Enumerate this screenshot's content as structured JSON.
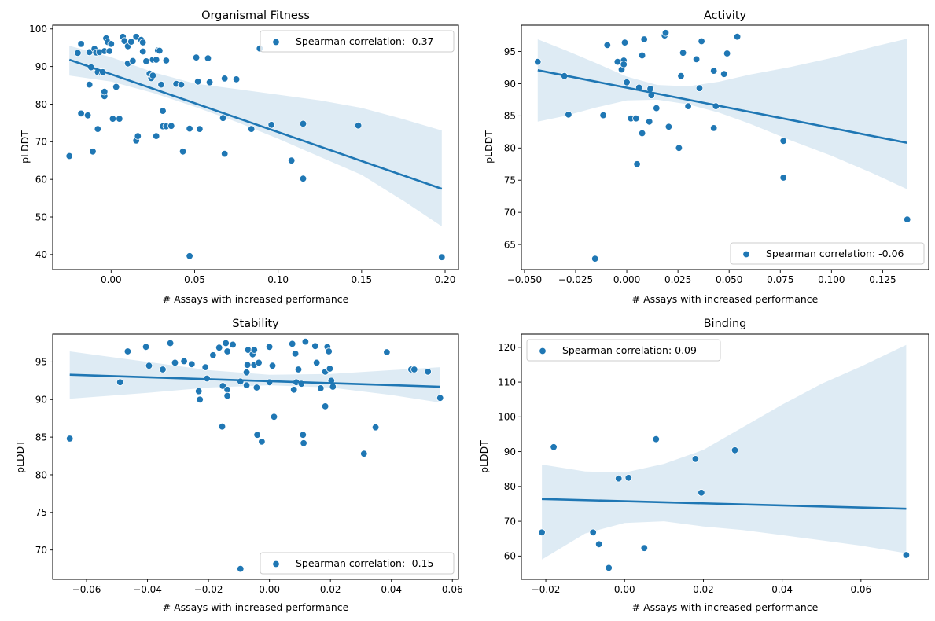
{
  "figure": {
    "point_color": "#1f77b4",
    "band_color": "#1f77b4"
  },
  "chart_data": [
    {
      "type": "scatter",
      "title": "Organismal Fitness",
      "xlabel": "# Assays with increased performance",
      "ylabel": "pLDDT",
      "xlim": [
        -0.035,
        0.208
      ],
      "ylim": [
        36,
        101
      ],
      "xticks": [
        0.0,
        0.05,
        0.1,
        0.15,
        0.2
      ],
      "xtick_labels": [
        "0.00",
        "0.05",
        "0.10",
        "0.15",
        "0.20"
      ],
      "yticks": [
        40,
        50,
        60,
        70,
        80,
        90,
        100
      ],
      "ytick_labels": [
        "40",
        "50",
        "60",
        "70",
        "80",
        "90",
        "100"
      ],
      "legend": {
        "label": "Spearman correlation: -0.37",
        "placement": "upper right"
      },
      "regression": {
        "x": [
          -0.025,
          0.198
        ],
        "y": [
          91.8,
          57.5
        ]
      },
      "ci_band": {
        "x": [
          -0.025,
          0.0,
          0.025,
          0.05,
          0.075,
          0.1,
          0.125,
          0.15,
          0.175,
          0.198
        ],
        "lower": [
          87.6,
          86.0,
          83.0,
          79.3,
          75.3,
          70.8,
          66.0,
          61.2,
          54.3,
          47.5
        ],
        "upper": [
          95.5,
          92.5,
          88.5,
          85.5,
          84.0,
          82.5,
          81.0,
          79.0,
          76.0,
          73.0
        ]
      },
      "points": [
        [
          -0.025,
          66.2
        ],
        [
          -0.02,
          93.6
        ],
        [
          -0.018,
          96.0
        ],
        [
          -0.018,
          77.5
        ],
        [
          -0.014,
          77.0
        ],
        [
          -0.013,
          93.8
        ],
        [
          -0.013,
          85.2
        ],
        [
          -0.012,
          89.8
        ],
        [
          -0.011,
          67.4
        ],
        [
          -0.01,
          94.7
        ],
        [
          -0.009,
          93.7
        ],
        [
          -0.008,
          88.5
        ],
        [
          -0.008,
          73.4
        ],
        [
          -0.007,
          93.8
        ],
        [
          -0.006,
          88.5
        ],
        [
          -0.005,
          88.5
        ],
        [
          -0.004,
          94.1
        ],
        [
          -0.004,
          82.1
        ],
        [
          -0.004,
          83.3
        ],
        [
          -0.003,
          97.5
        ],
        [
          -0.002,
          96.5
        ],
        [
          -0.001,
          94.1
        ],
        [
          0.0,
          96.0
        ],
        [
          0.001,
          76.1
        ],
        [
          0.003,
          84.6
        ],
        [
          0.005,
          76.1
        ],
        [
          0.007,
          97.9
        ],
        [
          0.008,
          96.8
        ],
        [
          0.01,
          95.4
        ],
        [
          0.01,
          90.8
        ],
        [
          0.012,
          96.6
        ],
        [
          0.013,
          91.5
        ],
        [
          0.015,
          97.9
        ],
        [
          0.015,
          70.3
        ],
        [
          0.016,
          71.5
        ],
        [
          0.018,
          97.1
        ],
        [
          0.019,
          96.4
        ],
        [
          0.019,
          94.0
        ],
        [
          0.021,
          91.4
        ],
        [
          0.023,
          88.1
        ],
        [
          0.024,
          86.9
        ],
        [
          0.025,
          87.6
        ],
        [
          0.025,
          91.8
        ],
        [
          0.027,
          91.8
        ],
        [
          0.027,
          71.5
        ],
        [
          0.028,
          94.3
        ],
        [
          0.029,
          94.2
        ],
        [
          0.03,
          85.2
        ],
        [
          0.031,
          78.2
        ],
        [
          0.031,
          74.1
        ],
        [
          0.033,
          74.1
        ],
        [
          0.033,
          91.6
        ],
        [
          0.036,
          74.2
        ],
        [
          0.039,
          85.4
        ],
        [
          0.042,
          85.2
        ],
        [
          0.043,
          67.4
        ],
        [
          0.047,
          73.5
        ],
        [
          0.047,
          39.6
        ],
        [
          0.051,
          92.4
        ],
        [
          0.052,
          86.0
        ],
        [
          0.053,
          73.4
        ],
        [
          0.058,
          92.2
        ],
        [
          0.059,
          85.8
        ],
        [
          0.067,
          76.3
        ],
        [
          0.068,
          86.8
        ],
        [
          0.068,
          66.8
        ],
        [
          0.075,
          86.6
        ],
        [
          0.084,
          73.4
        ],
        [
          0.089,
          94.8
        ],
        [
          0.096,
          74.5
        ],
        [
          0.108,
          65.0
        ],
        [
          0.115,
          74.8
        ],
        [
          0.115,
          60.2
        ],
        [
          0.148,
          74.3
        ],
        [
          0.198,
          39.3
        ]
      ]
    },
    {
      "type": "scatter",
      "title": "Activity",
      "xlabel": "# Assays with increased performance",
      "ylabel": "pLDDT",
      "xlim": [
        -0.0515,
        0.1475
      ],
      "ylim": [
        61.1,
        99.1
      ],
      "xticks": [
        -0.05,
        -0.025,
        0.0,
        0.025,
        0.05,
        0.075,
        0.1,
        0.125
      ],
      "xtick_labels": [
        "−0.050",
        "−0.025",
        "0.000",
        "0.025",
        "0.050",
        "0.075",
        "0.100",
        "0.125"
      ],
      "yticks": [
        65,
        70,
        75,
        80,
        85,
        90,
        95
      ],
      "ytick_labels": [
        "65",
        "70",
        "75",
        "80",
        "85",
        "90",
        "95"
      ],
      "legend": {
        "label": "Spearman correlation: -0.06",
        "placement": "lower right"
      },
      "regression": {
        "x": [
          -0.0435,
          0.137
        ],
        "y": [
          92.1,
          80.8
        ]
      },
      "ci_band": {
        "x": [
          -0.0435,
          -0.03,
          -0.015,
          0.0,
          0.015,
          0.03,
          0.045,
          0.06,
          0.08,
          0.1,
          0.12,
          0.137
        ],
        "lower": [
          84.1,
          85.0,
          86.3,
          87.4,
          87.5,
          86.8,
          85.5,
          83.8,
          81.2,
          78.8,
          76.1,
          73.6
        ],
        "upper": [
          96.9,
          95.2,
          93.2,
          91.1,
          89.8,
          89.6,
          90.3,
          91.4,
          92.6,
          94.0,
          95.7,
          97.0
        ]
      },
      "points": [
        [
          -0.0435,
          93.4
        ],
        [
          -0.0305,
          91.2
        ],
        [
          -0.0285,
          85.2
        ],
        [
          -0.0115,
          85.1
        ],
        [
          -0.0095,
          96.0
        ],
        [
          -0.0045,
          93.4
        ],
        [
          -0.0025,
          92.2
        ],
        [
          -0.0015,
          93.6
        ],
        [
          -0.0015,
          93.0
        ],
        [
          -0.001,
          96.4
        ],
        [
          0.0,
          90.2
        ],
        [
          0.002,
          84.6
        ],
        [
          0.0045,
          84.6
        ],
        [
          0.005,
          77.5
        ],
        [
          0.006,
          89.4
        ],
        [
          0.0075,
          82.3
        ],
        [
          0.0075,
          94.4
        ],
        [
          0.0085,
          96.9
        ],
        [
          0.011,
          84.1
        ],
        [
          0.0115,
          89.2
        ],
        [
          0.012,
          88.2
        ],
        [
          0.0145,
          86.2
        ],
        [
          0.0185,
          97.5
        ],
        [
          0.019,
          97.9
        ],
        [
          0.0205,
          83.3
        ],
        [
          0.0255,
          80.0
        ],
        [
          0.0265,
          91.2
        ],
        [
          0.0275,
          94.8
        ],
        [
          0.03,
          86.5
        ],
        [
          0.034,
          93.8
        ],
        [
          0.0355,
          89.3
        ],
        [
          0.0365,
          96.6
        ],
        [
          0.0425,
          92.0
        ],
        [
          0.0425,
          83.1
        ],
        [
          0.0435,
          86.5
        ],
        [
          0.0475,
          91.5
        ],
        [
          0.049,
          94.7
        ],
        [
          0.054,
          97.3
        ],
        [
          0.0765,
          81.1
        ],
        [
          0.0765,
          75.4
        ],
        [
          0.137,
          68.9
        ],
        [
          -0.0155,
          62.8
        ]
      ]
    },
    {
      "type": "scatter",
      "title": "Stability",
      "xlabel": "# Assays with increased performance",
      "ylabel": "pLDDT",
      "xlim": [
        -0.0711,
        0.062
      ],
      "ylim": [
        66.1,
        98.7
      ],
      "xticks": [
        -0.06,
        -0.04,
        -0.02,
        0.0,
        0.02,
        0.04,
        0.06
      ],
      "xtick_labels": [
        "−0.06",
        "−0.04",
        "−0.02",
        "0.00",
        "0.02",
        "0.04",
        "0.06"
      ],
      "yticks": [
        70,
        75,
        80,
        85,
        90,
        95
      ],
      "ytick_labels": [
        "70",
        "75",
        "80",
        "85",
        "90",
        "95"
      ],
      "legend": {
        "label": "Spearman correlation: -0.15",
        "placement": "lower right"
      },
      "regression": {
        "x": [
          -0.0655,
          0.056
        ],
        "y": [
          93.3,
          91.7
        ]
      },
      "ci_band": {
        "x": [
          -0.0655,
          -0.04,
          -0.02,
          0.0,
          0.02,
          0.04,
          0.056
        ],
        "lower": [
          90.1,
          90.9,
          91.6,
          91.9,
          91.6,
          90.6,
          89.6
        ],
        "upper": [
          96.4,
          95.0,
          93.9,
          93.3,
          93.4,
          93.9,
          94.3
        ]
      },
      "points": [
        [
          -0.0655,
          84.8
        ],
        [
          -0.049,
          92.3
        ],
        [
          -0.0465,
          96.4
        ],
        [
          -0.0405,
          97.0
        ],
        [
          -0.0395,
          94.5
        ],
        [
          -0.035,
          94.0
        ],
        [
          -0.0325,
          97.5
        ],
        [
          -0.031,
          94.9
        ],
        [
          -0.028,
          95.1
        ],
        [
          -0.0255,
          94.7
        ],
        [
          -0.0232,
          91.1
        ],
        [
          -0.0228,
          90.0
        ],
        [
          -0.021,
          94.3
        ],
        [
          -0.0205,
          92.8
        ],
        [
          -0.0185,
          95.9
        ],
        [
          -0.0165,
          96.9
        ],
        [
          -0.0155,
          86.4
        ],
        [
          -0.0153,
          91.8
        ],
        [
          -0.0143,
          97.5
        ],
        [
          -0.0138,
          96.4
        ],
        [
          -0.0138,
          91.3
        ],
        [
          -0.0138,
          90.5
        ],
        [
          -0.012,
          97.3
        ],
        [
          -0.0095,
          92.4
        ],
        [
          -0.0095,
          67.5
        ],
        [
          -0.0075,
          93.6
        ],
        [
          -0.0075,
          91.9
        ],
        [
          -0.0072,
          94.6
        ],
        [
          -0.007,
          96.6
        ],
        [
          -0.0055,
          96.0
        ],
        [
          -0.005,
          96.6
        ],
        [
          -0.005,
          94.6
        ],
        [
          -0.0042,
          91.6
        ],
        [
          -0.0035,
          94.9
        ],
        [
          -0.004,
          85.3
        ],
        [
          -0.0025,
          84.4
        ],
        [
          0.0,
          92.3
        ],
        [
          0.0,
          97.0
        ],
        [
          0.0015,
          87.7
        ],
        [
          0.001,
          94.5
        ],
        [
          0.0075,
          97.4
        ],
        [
          0.008,
          91.3
        ],
        [
          0.0085,
          96.1
        ],
        [
          0.0088,
          92.3
        ],
        [
          0.0095,
          94.0
        ],
        [
          0.0105,
          92.1
        ],
        [
          0.011,
          85.3
        ],
        [
          0.0112,
          84.2
        ],
        [
          0.0118,
          97.7
        ],
        [
          0.015,
          97.1
        ],
        [
          0.0155,
          94.9
        ],
        [
          0.0168,
          91.5
        ],
        [
          0.0183,
          89.1
        ],
        [
          0.0183,
          93.7
        ],
        [
          0.019,
          97.0
        ],
        [
          0.0195,
          96.4
        ],
        [
          0.0198,
          94.1
        ],
        [
          0.0203,
          92.5
        ],
        [
          0.0208,
          91.7
        ],
        [
          0.031,
          82.8
        ],
        [
          0.0348,
          86.3
        ],
        [
          0.0385,
          96.3
        ],
        [
          0.0465,
          94.0
        ],
        [
          0.0475,
          94.0
        ],
        [
          0.052,
          93.7
        ],
        [
          0.056,
          90.2
        ],
        [
          -0.0655,
          84.8
        ]
      ]
    },
    {
      "type": "scatter",
      "title": "Binding",
      "xlabel": "# Assays with increased performance",
      "ylabel": "pLDDT",
      "xlim": [
        -0.0262,
        0.0772
      ],
      "ylim": [
        53.3,
        123.8
      ],
      "xticks": [
        -0.02,
        0.0,
        0.02,
        0.04,
        0.06
      ],
      "xtick_labels": [
        "−0.02",
        "0.00",
        "0.02",
        "0.04",
        "0.06"
      ],
      "yticks": [
        60,
        70,
        80,
        90,
        100,
        110,
        120
      ],
      "ytick_labels": [
        "60",
        "70",
        "80",
        "90",
        "100",
        "110",
        "120"
      ],
      "legend": {
        "label": "Spearman correlation: 0.09",
        "placement": "upper left"
      },
      "regression": {
        "x": [
          -0.021,
          0.0715
        ],
        "y": [
          76.4,
          73.6
        ]
      },
      "ci_band": {
        "x": [
          -0.021,
          -0.01,
          0.0,
          0.01,
          0.02,
          0.03,
          0.04,
          0.05,
          0.06,
          0.0715
        ],
        "lower": [
          59.0,
          66.5,
          69.5,
          70.0,
          68.5,
          67.5,
          66.0,
          64.5,
          63.0,
          60.8
        ],
        "upper": [
          86.3,
          84.3,
          84.0,
          86.5,
          90.5,
          97.0,
          103.5,
          109.5,
          114.5,
          120.7
        ]
      },
      "points": [
        [
          -0.021,
          66.8
        ],
        [
          -0.018,
          91.3
        ],
        [
          -0.008,
          66.8
        ],
        [
          -0.0065,
          63.4
        ],
        [
          -0.004,
          56.6
        ],
        [
          -0.0015,
          82.3
        ],
        [
          0.001,
          82.5
        ],
        [
          0.005,
          62.3
        ],
        [
          0.008,
          93.6
        ],
        [
          0.018,
          87.9
        ],
        [
          0.0195,
          78.2
        ],
        [
          0.028,
          90.4
        ],
        [
          0.0715,
          60.3
        ]
      ]
    }
  ]
}
